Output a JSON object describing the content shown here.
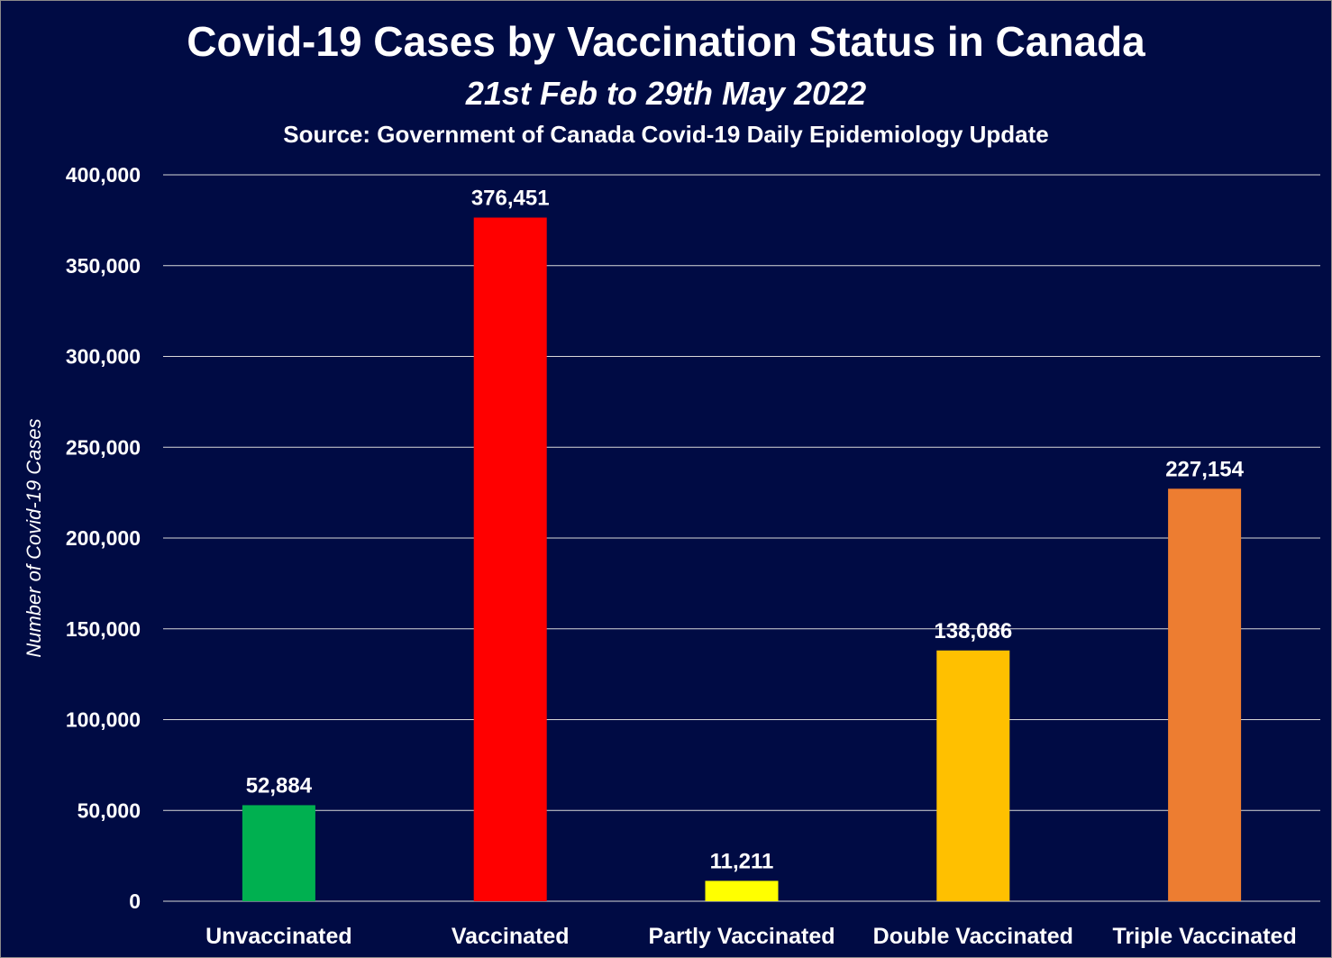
{
  "chart_data": {
    "type": "bar",
    "title": "Covid-19 Cases by Vaccination Status in Canada",
    "subtitle": "21st Feb to 29th May 2022",
    "source": "Source: Government of Canada Covid-19 Daily Epidemiology Update",
    "xlabel": "",
    "ylabel": "Number of Covid-19 Cases",
    "ylim": [
      0,
      400000
    ],
    "y_ticks": [
      "0",
      "50,000",
      "100,000",
      "150,000",
      "200,000",
      "250,000",
      "300,000",
      "350,000",
      "400,000"
    ],
    "grid": true,
    "categories": [
      "Unvaccinated",
      "Vaccinated",
      "Partly Vaccinated",
      "Double Vaccinated",
      "Triple Vaccinated"
    ],
    "values": [
      52884,
      376451,
      11211,
      138086,
      227154
    ],
    "value_labels": [
      "52,884",
      "376,451",
      "11,211",
      "138,086",
      "227,154"
    ],
    "bar_colors": [
      "#00B050",
      "#FF0000",
      "#FFFF00",
      "#FFC000",
      "#ED7D31"
    ],
    "background_color": "#000B44"
  }
}
